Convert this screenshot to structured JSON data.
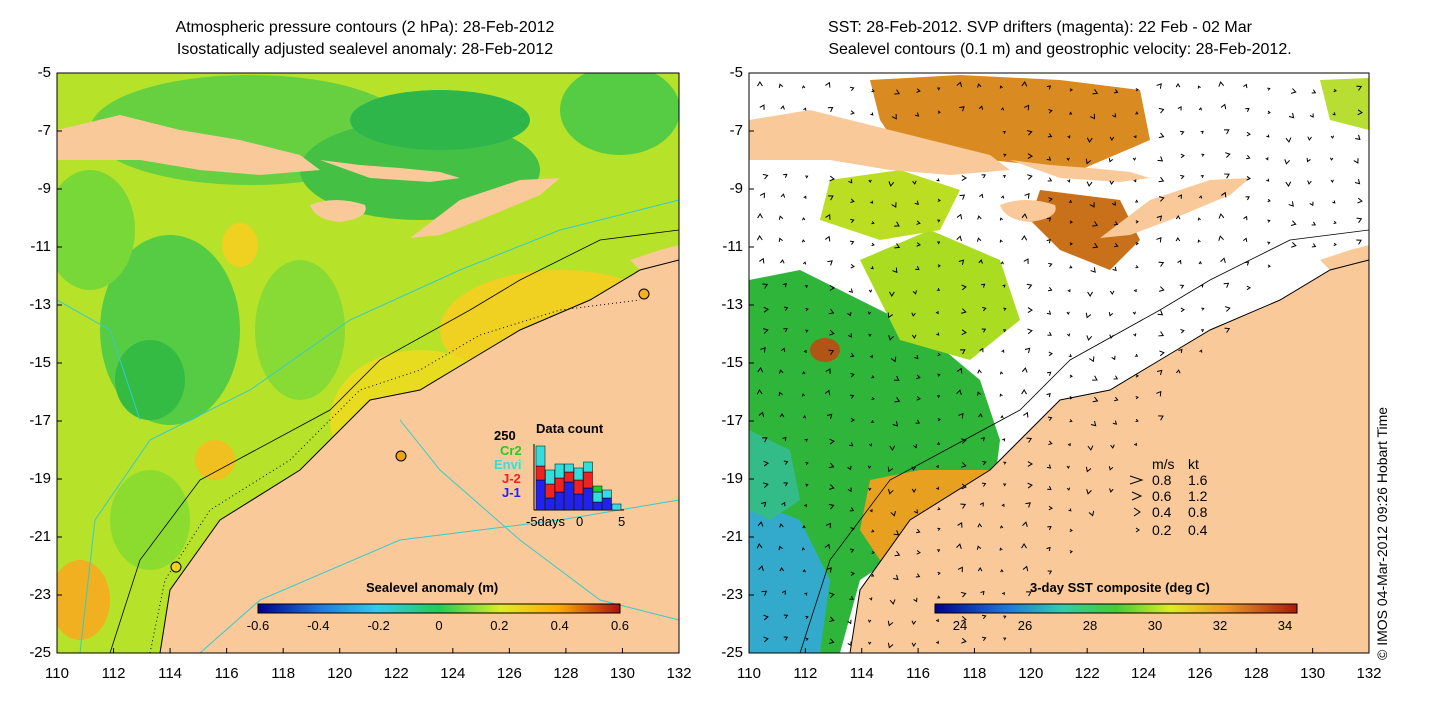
{
  "left_panel": {
    "title_line1": "Atmospheric pressure contours (2 hPa): 28-Feb-2012",
    "title_line2": "Isostatically adjusted sealevel anomaly: 28-Feb-2012",
    "colorbar": {
      "title": "Sealevel anomaly (m)",
      "ticks": [
        "-0.6",
        "-0.4",
        "-0.2",
        "0",
        "0.2",
        "0.4",
        "0.6"
      ]
    },
    "data_count": {
      "title": "Data count",
      "ymax_label": "250",
      "satellites": [
        {
          "name": "Cr2",
          "color": "#22cc22"
        },
        {
          "name": "Envi",
          "color": "#33dddd"
        },
        {
          "name": "J-2",
          "color": "#ee2222"
        },
        {
          "name": "J-1",
          "color": "#2222ee"
        }
      ],
      "xlabels": [
        "-5days",
        "0",
        "5"
      ]
    }
  },
  "right_panel": {
    "title_line1": "SST: 28-Feb-2012. SVP drifters (magenta): 22 Feb - 02 Mar",
    "title_line2": "Sealevel contours (0.1 m) and geostrophic velocity: 28-Feb-2012.",
    "colorbar": {
      "title": "3-day SST composite (deg C)",
      "ticks": [
        "24",
        "26",
        "28",
        "30",
        "32",
        "34"
      ]
    },
    "speed_legend": {
      "header_ms": "m/s",
      "header_kt": "kt",
      "rows": [
        {
          "ms": "0.8",
          "kt": "1.6"
        },
        {
          "ms": "0.6",
          "kt": "1.2"
        },
        {
          "ms": "0.4",
          "kt": "0.8"
        },
        {
          "ms": "0.2",
          "kt": "0.4"
        }
      ]
    }
  },
  "axes": {
    "lat_ticks": [
      "-5",
      "-7",
      "-9",
      "-11",
      "-13",
      "-15",
      "-17",
      "-19",
      "-21",
      "-23",
      "-25"
    ],
    "lon_ticks": [
      "110",
      "112",
      "114",
      "116",
      "118",
      "120",
      "122",
      "124",
      "126",
      "128",
      "130",
      "132"
    ]
  },
  "credit": "© IMOS 04-Mar-2012 09:26 Hobart Time"
}
